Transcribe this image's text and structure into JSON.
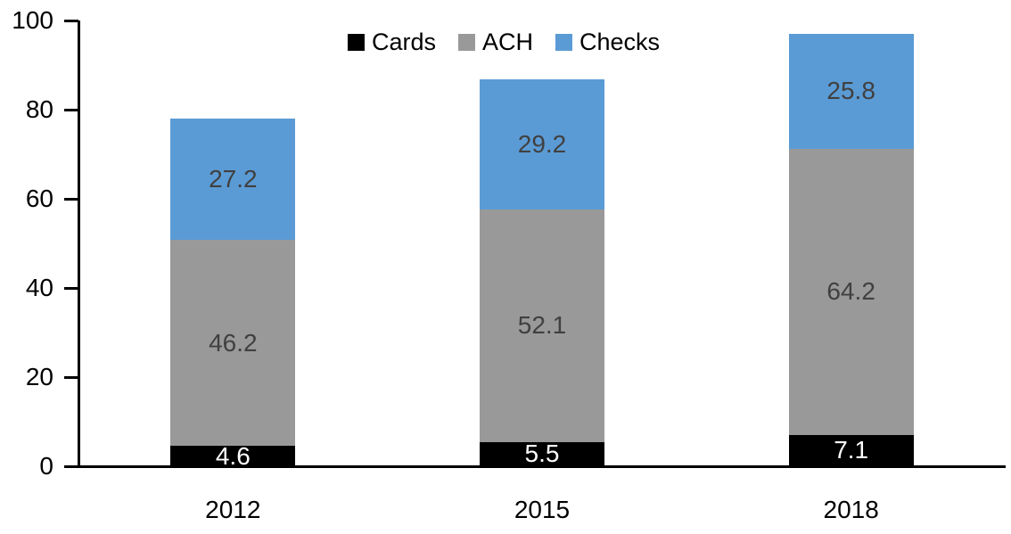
{
  "chart_data": {
    "type": "bar",
    "stacked": true,
    "title": "",
    "xlabel": "",
    "ylabel": "",
    "categories": [
      "2012",
      "2015",
      "2018"
    ],
    "series": [
      {
        "name": "Cards",
        "color": "#000000",
        "label_color": "#ffffff",
        "values": [
          4.6,
          5.5,
          7.1
        ]
      },
      {
        "name": "ACH",
        "color": "#999999",
        "label_color": "#404040",
        "values": [
          46.2,
          52.1,
          64.2
        ]
      },
      {
        "name": "Checks",
        "color": "#5b9bd5",
        "label_color": "#404040",
        "values": [
          27.2,
          29.2,
          25.8
        ]
      }
    ],
    "ylim": [
      0,
      100
    ],
    "yticks": [
      0,
      20,
      40,
      60,
      80,
      100
    ],
    "grid": false,
    "legend_position": "top",
    "data_labels_shown": true,
    "axis_color": "#000000"
  }
}
